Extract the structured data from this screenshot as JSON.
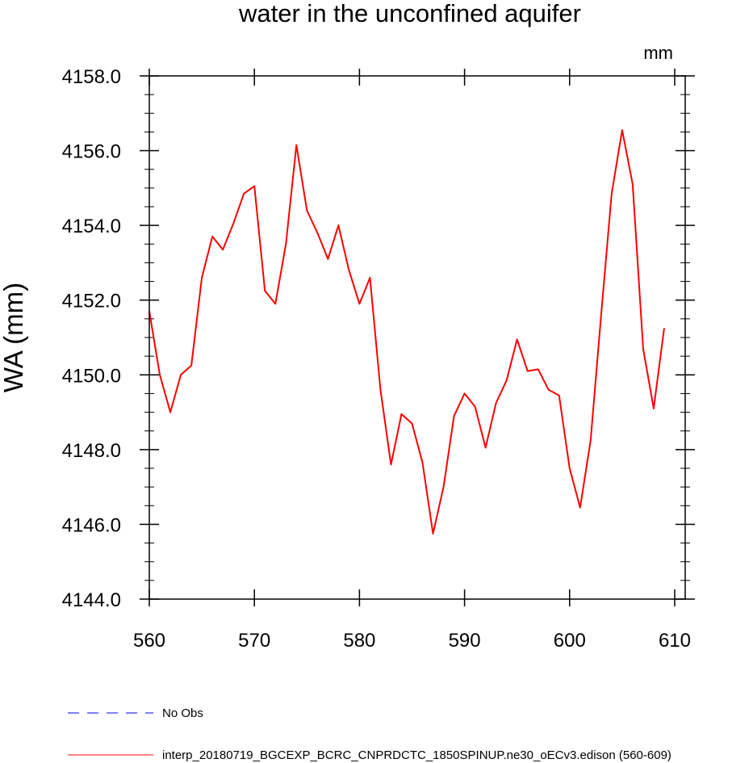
{
  "chart_data": {
    "type": "line",
    "title": "water in the unconfined aquifer",
    "units": "mm",
    "ylabel": "WA  (mm)",
    "xlabel": "",
    "xlim": [
      560,
      611
    ],
    "ylim": [
      4144.0,
      4158.0
    ],
    "x_ticks": [
      560,
      570,
      580,
      590,
      600,
      610
    ],
    "x_tick_labels": [
      "560",
      "570",
      "580",
      "590",
      "600",
      "610"
    ],
    "y_ticks": [
      4144.0,
      4146.0,
      4148.0,
      4150.0,
      4152.0,
      4154.0,
      4156.0,
      4158.0
    ],
    "y_tick_labels": [
      "4144.0",
      "4146.0",
      "4148.0",
      "4150.0",
      "4152.0",
      "4154.0",
      "4156.0",
      "4158.0"
    ],
    "grid": false,
    "legend_position": "bottom",
    "series": [
      {
        "name": "interp_20180719_BGCEXP_BCRC_CNPRDCTC_1850SPINUP.ne30_oECv3.edison (560-609)",
        "color": "#ff0000",
        "style": "solid",
        "x": [
          560,
          561,
          562,
          563,
          564,
          565,
          566,
          567,
          568,
          569,
          570,
          571,
          572,
          573,
          574,
          575,
          576,
          577,
          578,
          579,
          580,
          581,
          582,
          583,
          584,
          585,
          586,
          587,
          588,
          589,
          590,
          591,
          592,
          593,
          594,
          595,
          596,
          597,
          598,
          599,
          600,
          601,
          602,
          603,
          604,
          605,
          606,
          607,
          608,
          609
        ],
        "values": [
          4151.7,
          4150.0,
          4149.0,
          4150.0,
          4150.25,
          4152.6,
          4153.7,
          4153.35,
          4154.05,
          4154.85,
          4155.05,
          4152.25,
          4151.9,
          4153.5,
          4156.15,
          4154.4,
          4153.8,
          4153.1,
          4154.0,
          4152.8,
          4151.9,
          4152.6,
          4149.6,
          4147.6,
          4148.95,
          4148.7,
          4147.65,
          4145.75,
          4147.0,
          4148.9,
          4149.5,
          4149.15,
          4148.05,
          4149.25,
          4149.85,
          4150.95,
          4150.1,
          4150.15,
          4149.6,
          4149.45,
          4147.5,
          4146.45,
          4148.25,
          4151.6,
          4154.85,
          4156.55,
          4155.1,
          4150.7,
          4149.1,
          4151.25
        ]
      },
      {
        "name": "No Obs",
        "color": "#0000ff",
        "style": "dashed",
        "x": [],
        "values": []
      }
    ]
  }
}
